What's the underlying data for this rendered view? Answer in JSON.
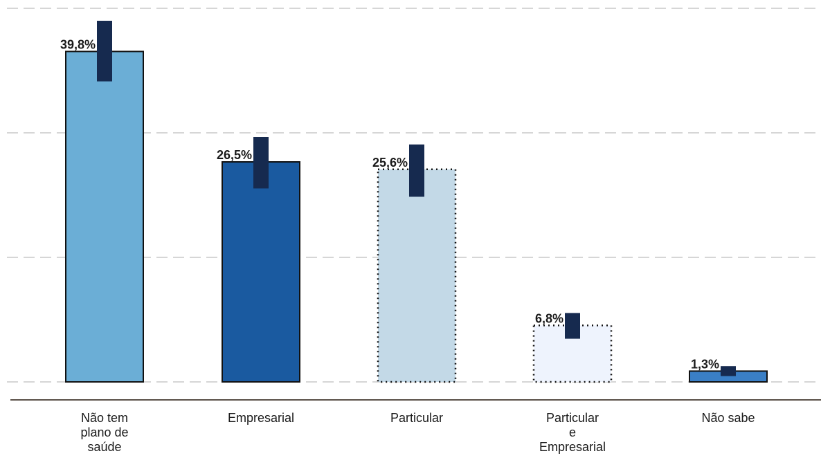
{
  "chart_data": {
    "type": "bar",
    "categories": [
      [
        "Não tem",
        "plano de",
        "saúde"
      ],
      [
        "Empresarial"
      ],
      [
        "Particular"
      ],
      [
        "Particular",
        "e",
        "Empresarial"
      ],
      [
        "Não sabe"
      ]
    ],
    "values": [
      39.8,
      26.5,
      25.6,
      6.8,
      1.3
    ],
    "value_labels": [
      "39,8%",
      "26,5%",
      "25,6%",
      "6,8%",
      "1,3%"
    ],
    "error_bars": [
      {
        "low": 36.2,
        "high": 43.5
      },
      {
        "low": 23.3,
        "high": 29.5
      },
      {
        "low": 22.3,
        "high": 28.6
      },
      {
        "low": 5.2,
        "high": 8.3
      },
      {
        "low": 0.7,
        "high": 1.9
      }
    ],
    "bar_colors": [
      "#6baed6",
      "#1a5aa0",
      "#c3d9e7",
      "#eef3fd",
      "#3a7fc6"
    ],
    "bar_border_styles": [
      "solid",
      "solid",
      "dotted",
      "dotted",
      "solid"
    ],
    "error_bar_color": "#162a4f",
    "ylim": [
      0,
      45
    ],
    "gridlines": [
      0,
      15,
      30,
      45
    ],
    "grid": true,
    "title": "",
    "xlabel": "",
    "ylabel": ""
  }
}
